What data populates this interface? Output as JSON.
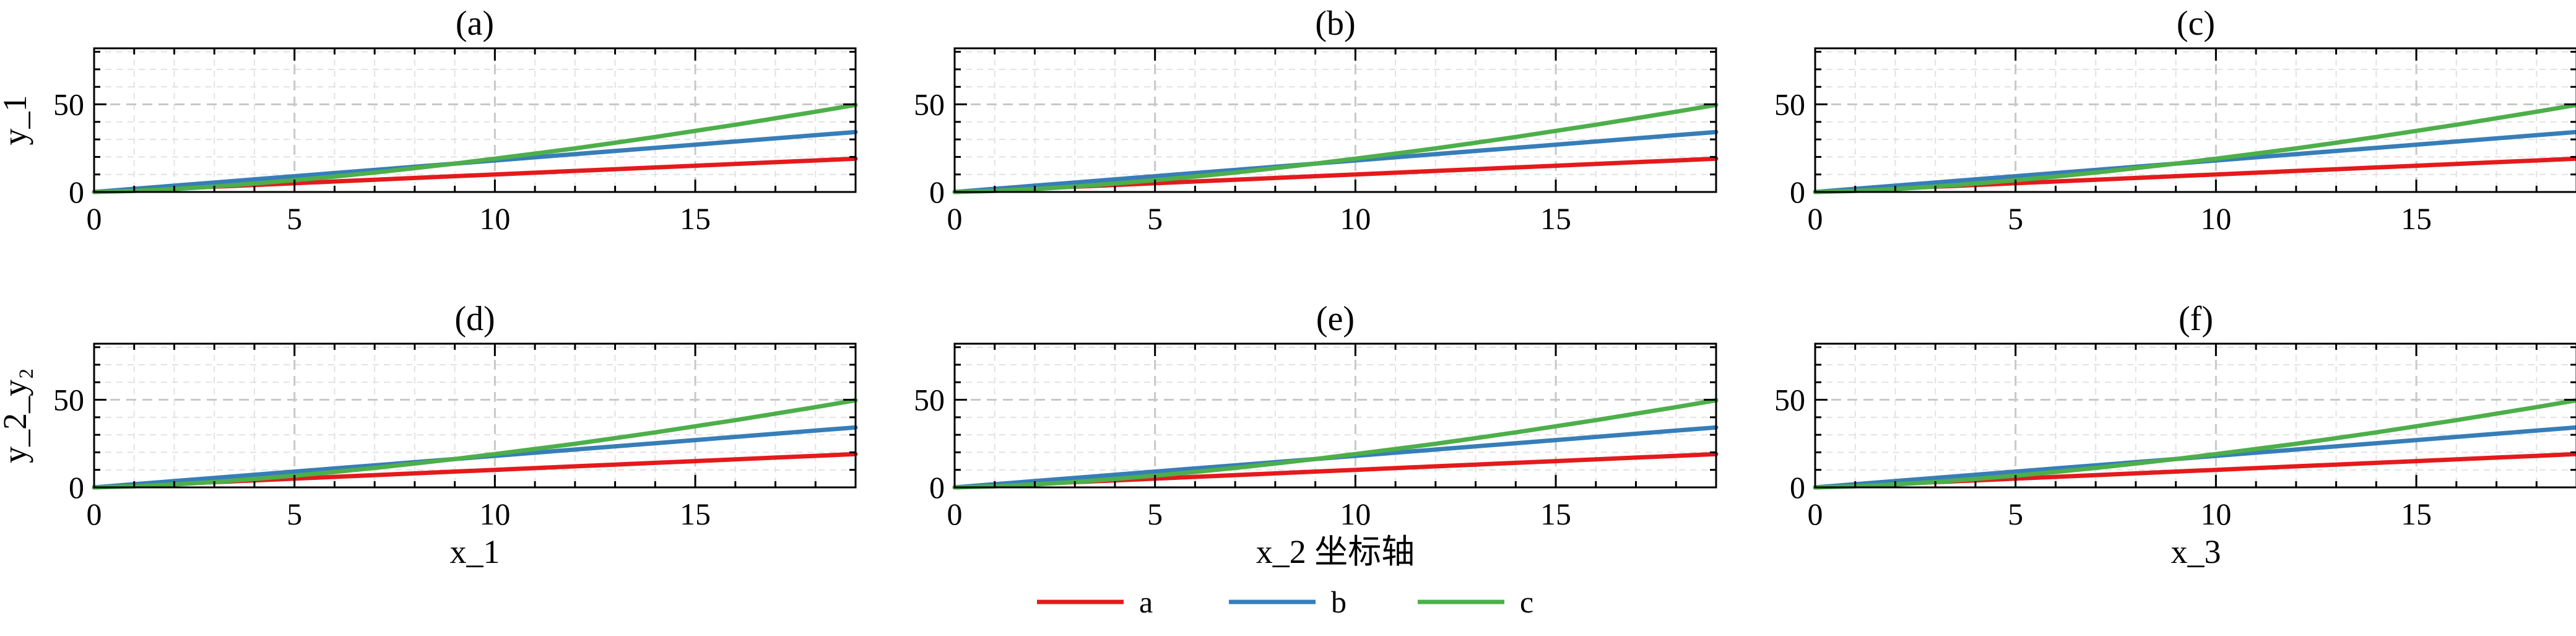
{
  "chart_data": [
    {
      "type": "line",
      "title": "(a)",
      "xlabel": "",
      "ylabel": "y_1",
      "xlim": [
        0,
        19
      ],
      "ylim": [
        0,
        82
      ],
      "xticks": [
        0,
        5,
        10,
        15
      ],
      "yticks": [
        0,
        50
      ],
      "x": [
        0,
        1,
        2,
        3,
        4,
        5,
        6,
        7,
        8,
        9,
        10,
        11,
        12,
        13,
        14,
        15,
        16,
        17,
        18,
        19
      ],
      "series": [
        {
          "name": "a",
          "color": "#e41a1c",
          "values": [
            0,
            1,
            2,
            3,
            4,
            5,
            6,
            7,
            8,
            9,
            10,
            11,
            12,
            13,
            14,
            15,
            16,
            17,
            18,
            19
          ]
        },
        {
          "name": "b",
          "color": "#377eb8",
          "values": [
            0,
            1.8,
            3.6,
            5.4,
            7.2,
            9,
            10.8,
            12.6,
            14.4,
            16.2,
            18,
            19.8,
            21.6,
            23.4,
            25.2,
            27,
            28.8,
            30.6,
            32.4,
            34.2
          ]
        },
        {
          "name": "c",
          "color": "#4daf4a",
          "values": [
            0,
            0.6,
            1.7,
            3.1,
            4.8,
            6.7,
            8.8,
            11.1,
            13.6,
            16.2,
            19,
            21.9,
            24.9,
            28.1,
            31.4,
            34.9,
            38.4,
            42.1,
            45.8,
            49.7
          ]
        }
      ]
    },
    {
      "type": "line",
      "title": "(b)",
      "xlabel": "",
      "ylabel": "",
      "xlim": [
        0,
        19
      ],
      "ylim": [
        0,
        82
      ],
      "xticks": [
        0,
        5,
        10,
        15
      ],
      "yticks": [
        0,
        50
      ],
      "x": [
        0,
        1,
        2,
        3,
        4,
        5,
        6,
        7,
        8,
        9,
        10,
        11,
        12,
        13,
        14,
        15,
        16,
        17,
        18,
        19
      ],
      "series": [
        {
          "name": "a",
          "color": "#e41a1c",
          "values": [
            0,
            1,
            2,
            3,
            4,
            5,
            6,
            7,
            8,
            9,
            10,
            11,
            12,
            13,
            14,
            15,
            16,
            17,
            18,
            19
          ]
        },
        {
          "name": "b",
          "color": "#377eb8",
          "values": [
            0,
            1.8,
            3.6,
            5.4,
            7.2,
            9,
            10.8,
            12.6,
            14.4,
            16.2,
            18,
            19.8,
            21.6,
            23.4,
            25.2,
            27,
            28.8,
            30.6,
            32.4,
            34.2
          ]
        },
        {
          "name": "c",
          "color": "#4daf4a",
          "values": [
            0,
            0.6,
            1.7,
            3.1,
            4.8,
            6.7,
            8.8,
            11.1,
            13.6,
            16.2,
            19,
            21.9,
            24.9,
            28.1,
            31.4,
            34.9,
            38.4,
            42.1,
            45.8,
            49.7
          ]
        }
      ]
    },
    {
      "type": "line",
      "title": "(c)",
      "xlabel": "",
      "ylabel": "",
      "xlim": [
        0,
        19
      ],
      "ylim": [
        0,
        82
      ],
      "xticks": [
        0,
        5,
        10,
        15
      ],
      "yticks": [
        0,
        50
      ],
      "x": [
        0,
        1,
        2,
        3,
        4,
        5,
        6,
        7,
        8,
        9,
        10,
        11,
        12,
        13,
        14,
        15,
        16,
        17,
        18,
        19
      ],
      "series": [
        {
          "name": "a",
          "color": "#e41a1c",
          "values": [
            0,
            1,
            2,
            3,
            4,
            5,
            6,
            7,
            8,
            9,
            10,
            11,
            12,
            13,
            14,
            15,
            16,
            17,
            18,
            19
          ]
        },
        {
          "name": "b",
          "color": "#377eb8",
          "values": [
            0,
            1.8,
            3.6,
            5.4,
            7.2,
            9,
            10.8,
            12.6,
            14.4,
            16.2,
            18,
            19.8,
            21.6,
            23.4,
            25.2,
            27,
            28.8,
            30.6,
            32.4,
            34.2
          ]
        },
        {
          "name": "c",
          "color": "#4daf4a",
          "values": [
            0,
            0.6,
            1.7,
            3.1,
            4.8,
            6.7,
            8.8,
            11.1,
            13.6,
            16.2,
            19,
            21.9,
            24.9,
            28.1,
            31.4,
            34.9,
            38.4,
            42.1,
            45.8,
            49.7
          ]
        }
      ]
    },
    {
      "type": "line",
      "title": "(d)",
      "xlabel": "x_1",
      "ylabel": "y_2_y₂",
      "xlim": [
        0,
        19
      ],
      "ylim": [
        0,
        82
      ],
      "xticks": [
        0,
        5,
        10,
        15
      ],
      "yticks": [
        0,
        50
      ],
      "x": [
        0,
        1,
        2,
        3,
        4,
        5,
        6,
        7,
        8,
        9,
        10,
        11,
        12,
        13,
        14,
        15,
        16,
        17,
        18,
        19
      ],
      "series": [
        {
          "name": "a",
          "color": "#e41a1c",
          "values": [
            0,
            1,
            2,
            3,
            4,
            5,
            6,
            7,
            8,
            9,
            10,
            11,
            12,
            13,
            14,
            15,
            16,
            17,
            18,
            19
          ]
        },
        {
          "name": "b",
          "color": "#377eb8",
          "values": [
            0,
            1.8,
            3.6,
            5.4,
            7.2,
            9,
            10.8,
            12.6,
            14.4,
            16.2,
            18,
            19.8,
            21.6,
            23.4,
            25.2,
            27,
            28.8,
            30.6,
            32.4,
            34.2
          ]
        },
        {
          "name": "c",
          "color": "#4daf4a",
          "values": [
            0,
            0.6,
            1.7,
            3.1,
            4.8,
            6.7,
            8.8,
            11.1,
            13.6,
            16.2,
            19,
            21.9,
            24.9,
            28.1,
            31.4,
            34.9,
            38.4,
            42.1,
            45.8,
            49.7
          ]
        }
      ]
    },
    {
      "type": "line",
      "title": "(e)",
      "xlabel": "x_2 坐标轴",
      "ylabel": "",
      "xlim": [
        0,
        19
      ],
      "ylim": [
        0,
        82
      ],
      "xticks": [
        0,
        5,
        10,
        15
      ],
      "yticks": [
        0,
        50
      ],
      "x": [
        0,
        1,
        2,
        3,
        4,
        5,
        6,
        7,
        8,
        9,
        10,
        11,
        12,
        13,
        14,
        15,
        16,
        17,
        18,
        19
      ],
      "series": [
        {
          "name": "a",
          "color": "#e41a1c",
          "values": [
            0,
            1,
            2,
            3,
            4,
            5,
            6,
            7,
            8,
            9,
            10,
            11,
            12,
            13,
            14,
            15,
            16,
            17,
            18,
            19
          ]
        },
        {
          "name": "b",
          "color": "#377eb8",
          "values": [
            0,
            1.8,
            3.6,
            5.4,
            7.2,
            9,
            10.8,
            12.6,
            14.4,
            16.2,
            18,
            19.8,
            21.6,
            23.4,
            25.2,
            27,
            28.8,
            30.6,
            32.4,
            34.2
          ]
        },
        {
          "name": "c",
          "color": "#4daf4a",
          "values": [
            0,
            0.6,
            1.7,
            3.1,
            4.8,
            6.7,
            8.8,
            11.1,
            13.6,
            16.2,
            19,
            21.9,
            24.9,
            28.1,
            31.4,
            34.9,
            38.4,
            42.1,
            45.8,
            49.7
          ]
        }
      ]
    },
    {
      "type": "line",
      "title": "(f)",
      "xlabel": "x_3",
      "ylabel": "",
      "xlim": [
        0,
        19
      ],
      "ylim": [
        0,
        82
      ],
      "xticks": [
        0,
        5,
        10,
        15
      ],
      "yticks": [
        0,
        50
      ],
      "x": [
        0,
        1,
        2,
        3,
        4,
        5,
        6,
        7,
        8,
        9,
        10,
        11,
        12,
        13,
        14,
        15,
        16,
        17,
        18,
        19
      ],
      "series": [
        {
          "name": "a",
          "color": "#e41a1c",
          "values": [
            0,
            1,
            2,
            3,
            4,
            5,
            6,
            7,
            8,
            9,
            10,
            11,
            12,
            13,
            14,
            15,
            16,
            17,
            18,
            19
          ]
        },
        {
          "name": "b",
          "color": "#377eb8",
          "values": [
            0,
            1.8,
            3.6,
            5.4,
            7.2,
            9,
            10.8,
            12.6,
            14.4,
            16.2,
            18,
            19.8,
            21.6,
            23.4,
            25.2,
            27,
            28.8,
            30.6,
            32.4,
            34.2
          ]
        },
        {
          "name": "c",
          "color": "#4daf4a",
          "values": [
            0,
            0.6,
            1.7,
            3.1,
            4.8,
            6.7,
            8.8,
            11.1,
            13.6,
            16.2,
            19,
            21.9,
            24.9,
            28.1,
            31.4,
            34.9,
            38.4,
            42.1,
            45.8,
            49.7
          ]
        }
      ]
    }
  ],
  "legend": {
    "placement": "bottom-center",
    "entries": [
      {
        "label": "a",
        "color": "#e41a1c"
      },
      {
        "label": "b",
        "color": "#377eb8"
      },
      {
        "label": "c",
        "color": "#4daf4a"
      }
    ]
  },
  "grid": true
}
